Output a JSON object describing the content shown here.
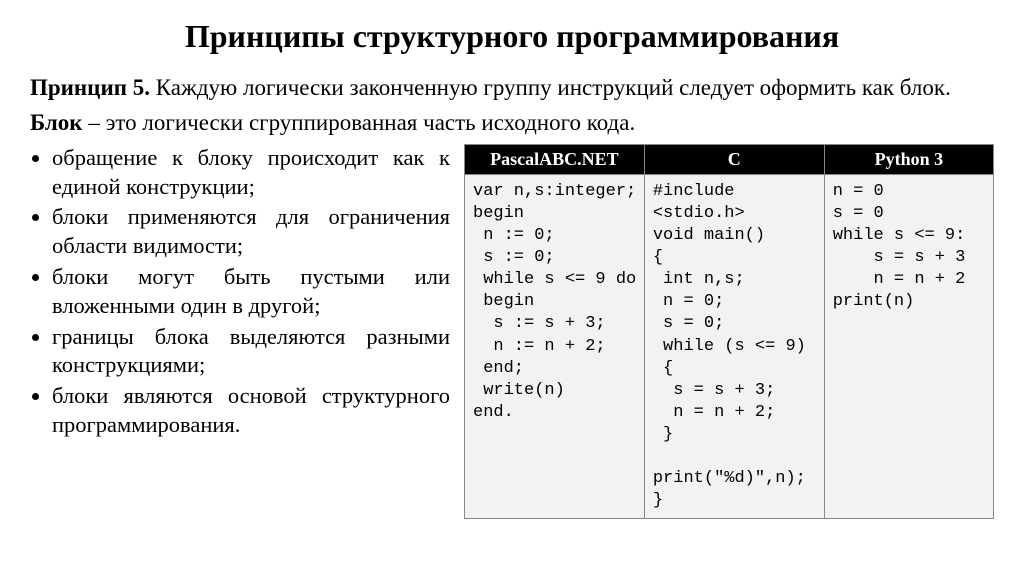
{
  "title": "Принципы структурного программирования",
  "principle_lead": "Принцип 5.",
  "principle_text": " Каждую логически законченную группу инструкций следует оформить как блок.",
  "block_lead": "Блок",
  "block_text": " – это логически сгруппированная часть исходного кода.",
  "bullets": [
    "обращение к блоку происходит как к единой конструкции;",
    "блоки применяются для ограничения области видимости;",
    "блоки могут быть пустыми или вложенными один в другой;",
    "границы блока выделяются разными конструкциями;",
    "блоки являются основой структурного программирования."
  ],
  "table": {
    "headers": [
      "PascalABC.NET",
      "C",
      "Python 3"
    ],
    "col_widths": [
      "34%",
      "34%",
      "32%"
    ],
    "header_bg": "#000000",
    "header_fg": "#ffffff",
    "cell_bg": "#f2f2f2",
    "border_color": "#888888",
    "code_fontsize": 17,
    "code_fontfamily": "Courier New",
    "code": {
      "pascal": "var n,s:integer;\nbegin\n n := 0;\n s := 0;\n while s <= 9 do\n begin\n  s := s + 3;\n  n := n + 2;\n end;\n write(n)\nend.",
      "c": "#include\n<stdio.h>\nvoid main()\n{\n int n,s;\n n = 0;\n s = 0;\n while (s <= 9)\n {\n  s = s + 3;\n  n = n + 2;\n }\n\nprint(\"%d)\",n);\n}",
      "python": "n = 0\ns = 0\nwhile s <= 9:\n    s = s + 3\n    n = n + 2\nprint(n)"
    }
  },
  "colors": {
    "background": "#ffffff",
    "text": "#000000"
  },
  "fonts": {
    "body_family": "Times New Roman",
    "title_size": 32,
    "body_size": 23,
    "bullet_size": 22.5
  }
}
